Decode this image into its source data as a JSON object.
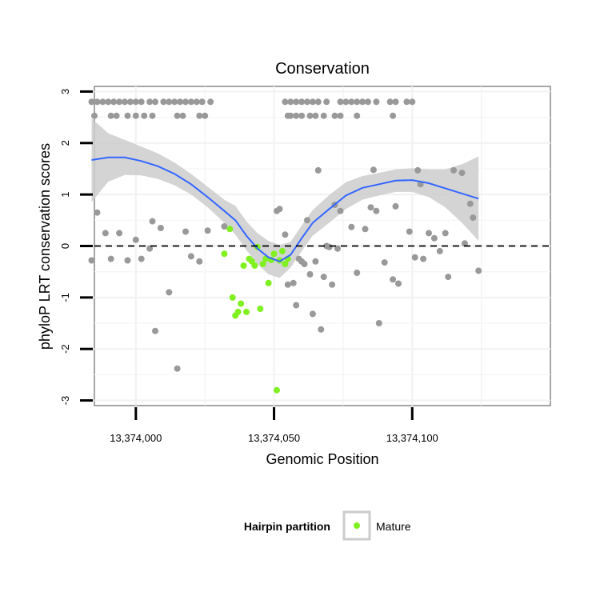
{
  "chart_data": {
    "type": "scatter",
    "title": "Conservation",
    "xlabel": "Genomic Position",
    "ylabel": "phyloP LRT conservation scores",
    "xlim": [
      13373985,
      13374150
    ],
    "ylim": [
      -3.1,
      3.1
    ],
    "x_ticks": [
      13374000,
      13374050,
      13374100
    ],
    "x_tick_labels": [
      "13,374,000",
      "13,374,050",
      "13,374,100"
    ],
    "y_ticks": [
      -3,
      -2,
      -1,
      0,
      1,
      2,
      3
    ],
    "y_tick_labels": [
      "-3",
      "-2",
      "-1",
      "0",
      "1",
      "2",
      "3"
    ],
    "grid": true,
    "reference_line": {
      "y": 0,
      "style": "dashed"
    },
    "colors": {
      "other": "#999999",
      "mature": "#80f020",
      "smooth": "#3366ff",
      "band": "#cccccc"
    },
    "legend": {
      "title": "Hairpin partition",
      "position": "bottom",
      "entries": [
        "Mature"
      ]
    },
    "series": [
      {
        "group": "other",
        "points": [
          [
            13373984,
            2.8
          ],
          [
            13373986,
            2.8
          ],
          [
            13373988,
            2.8
          ],
          [
            13373990,
            2.8
          ],
          [
            13373992,
            2.8
          ],
          [
            13373994,
            2.8
          ],
          [
            13373996,
            2.8
          ],
          [
            13373998,
            2.8
          ],
          [
            13374000,
            2.8
          ],
          [
            13374002,
            2.8
          ],
          [
            13374005,
            2.8
          ],
          [
            13374007,
            2.8
          ],
          [
            13374010,
            2.8
          ],
          [
            13374012,
            2.8
          ],
          [
            13374014,
            2.8
          ],
          [
            13374016,
            2.8
          ],
          [
            13374018,
            2.8
          ],
          [
            13374020,
            2.8
          ],
          [
            13374022,
            2.8
          ],
          [
            13374024,
            2.8
          ],
          [
            13374027,
            2.8
          ],
          [
            13373985,
            2.53
          ],
          [
            13373991,
            2.53
          ],
          [
            13373993,
            2.53
          ],
          [
            13373997,
            2.53
          ],
          [
            13374000,
            2.53
          ],
          [
            13374003,
            2.53
          ],
          [
            13374006,
            2.53
          ],
          [
            13374015,
            2.53
          ],
          [
            13374017,
            2.53
          ],
          [
            13374023,
            2.53
          ],
          [
            13374025,
            2.53
          ],
          [
            13374054,
            2.8
          ],
          [
            13374056,
            2.8
          ],
          [
            13374058,
            2.8
          ],
          [
            13374060,
            2.8
          ],
          [
            13374062,
            2.8
          ],
          [
            13374064,
            2.8
          ],
          [
            13374066,
            2.8
          ],
          [
            13374069,
            2.8
          ],
          [
            13374074,
            2.8
          ],
          [
            13374076,
            2.8
          ],
          [
            13374078,
            2.8
          ],
          [
            13374080,
            2.8
          ],
          [
            13374082,
            2.8
          ],
          [
            13374084,
            2.8
          ],
          [
            13374087,
            2.8
          ],
          [
            13374092,
            2.8
          ],
          [
            13374094,
            2.8
          ],
          [
            13374098,
            2.8
          ],
          [
            13374100,
            2.8
          ],
          [
            13374055,
            2.53
          ],
          [
            13374056,
            2.53
          ],
          [
            13374058,
            2.53
          ],
          [
            13374060,
            2.53
          ],
          [
            13374063,
            2.53
          ],
          [
            13374065,
            2.53
          ],
          [
            13374068,
            2.53
          ],
          [
            13374072,
            2.53
          ],
          [
            13374074,
            2.53
          ],
          [
            13374080,
            2.53
          ],
          [
            13374093,
            2.53
          ],
          [
            13373984,
            -0.28
          ],
          [
            13373986,
            0.65
          ],
          [
            13373989,
            0.25
          ],
          [
            13373991,
            -0.25
          ],
          [
            13373994,
            0.25
          ],
          [
            13373997,
            -0.28
          ],
          [
            13374000,
            0.12
          ],
          [
            13374002,
            -0.25
          ],
          [
            13374005,
            -0.05
          ],
          [
            13374006,
            0.48
          ],
          [
            13374007,
            -1.65
          ],
          [
            13374009,
            0.35
          ],
          [
            13374012,
            -0.9
          ],
          [
            13374015,
            -2.38
          ],
          [
            13374018,
            0.28
          ],
          [
            13374020,
            -0.2
          ],
          [
            13374023,
            -0.3
          ],
          [
            13374026,
            0.3
          ],
          [
            13374032,
            0.38
          ],
          [
            13374051,
            0.68
          ],
          [
            13374052,
            0.72
          ],
          [
            13374054,
            0.22
          ],
          [
            13374055,
            -0.75
          ],
          [
            13374057,
            -0.72
          ],
          [
            13374058,
            -1.15
          ],
          [
            13374059,
            -0.25
          ],
          [
            13374060,
            -0.3
          ],
          [
            13374061,
            -0.35
          ],
          [
            13374062,
            0.5
          ],
          [
            13374063,
            -0.55
          ],
          [
            13374064,
            -1.32
          ],
          [
            13374065,
            -0.3
          ],
          [
            13374066,
            1.47
          ],
          [
            13374067,
            -1.62
          ],
          [
            13374068,
            -0.6
          ],
          [
            13374069,
            0.0
          ],
          [
            13374070,
            -0.02
          ],
          [
            13374071,
            -0.75
          ],
          [
            13374072,
            0.8
          ],
          [
            13374073,
            -0.05
          ],
          [
            13374074,
            0.68
          ],
          [
            13374078,
            0.37
          ],
          [
            13374080,
            -0.52
          ],
          [
            13374083,
            0.33
          ],
          [
            13374085,
            0.75
          ],
          [
            13374086,
            1.48
          ],
          [
            13374087,
            0.68
          ],
          [
            13374088,
            -1.5
          ],
          [
            13374090,
            -0.32
          ],
          [
            13374093,
            -0.65
          ],
          [
            13374094,
            0.77
          ],
          [
            13374095,
            -0.73
          ],
          [
            13374099,
            0.28
          ],
          [
            13374101,
            -0.22
          ],
          [
            13374102,
            1.47
          ],
          [
            13374103,
            1.2
          ],
          [
            13374104,
            -0.25
          ],
          [
            13374106,
            0.25
          ],
          [
            13374108,
            0.15
          ],
          [
            13374110,
            -0.1
          ],
          [
            13374112,
            0.25
          ],
          [
            13374113,
            -0.6
          ],
          [
            13374115,
            1.47
          ],
          [
            13374118,
            1.42
          ],
          [
            13374119,
            0.05
          ],
          [
            13374121,
            0.82
          ],
          [
            13374122,
            0.55
          ],
          [
            13374124,
            -0.48
          ]
        ]
      },
      {
        "name": "Mature",
        "group": "mature",
        "points": [
          [
            13374032,
            -0.15
          ],
          [
            13374034,
            0.33
          ],
          [
            13374035,
            -1.0
          ],
          [
            13374036,
            -1.35
          ],
          [
            13374037,
            -1.28
          ],
          [
            13374038,
            -1.12
          ],
          [
            13374039,
            -0.38
          ],
          [
            13374040,
            -1.28
          ],
          [
            13374041,
            -0.25
          ],
          [
            13374042,
            -0.3
          ],
          [
            13374043,
            -0.38
          ],
          [
            13374044,
            -0.02
          ],
          [
            13374045,
            -1.22
          ],
          [
            13374046,
            -0.35
          ],
          [
            13374047,
            -0.25
          ],
          [
            13374048,
            -0.72
          ],
          [
            13374049,
            -0.27
          ],
          [
            13374050,
            -0.15
          ],
          [
            13374051,
            -2.8
          ],
          [
            13374052,
            -0.28
          ],
          [
            13374053,
            -0.1
          ],
          [
            13374054,
            -0.35
          ],
          [
            13374055,
            -0.25
          ]
        ]
      }
    ],
    "smooth": {
      "x": [
        13373984,
        13373990,
        13373996,
        13374002,
        13374008,
        13374014,
        13374020,
        13374026,
        13374032,
        13374036,
        13374040,
        13374044,
        13374048,
        13374052,
        13374056,
        13374060,
        13374064,
        13374070,
        13374076,
        13374082,
        13374088,
        13374094,
        13374100,
        13374106,
        13374112,
        13374118,
        13374124
      ],
      "y": [
        1.67,
        1.72,
        1.72,
        1.65,
        1.55,
        1.4,
        1.2,
        0.95,
        0.68,
        0.5,
        0.2,
        -0.05,
        -0.22,
        -0.3,
        -0.17,
        0.15,
        0.45,
        0.72,
        0.98,
        1.13,
        1.2,
        1.27,
        1.28,
        1.22,
        1.12,
        1.02,
        0.92
      ],
      "lower": [
        0.85,
        1.25,
        1.38,
        1.37,
        1.3,
        1.18,
        1.0,
        0.75,
        0.45,
        0.22,
        -0.08,
        -0.35,
        -0.55,
        -0.62,
        -0.42,
        -0.1,
        0.2,
        0.45,
        0.72,
        0.9,
        0.98,
        1.05,
        1.05,
        0.95,
        0.75,
        0.45,
        0.1
      ],
      "upper": [
        2.48,
        2.19,
        2.06,
        1.93,
        1.8,
        1.62,
        1.4,
        1.15,
        0.9,
        0.78,
        0.48,
        0.25,
        0.1,
        0.02,
        0.08,
        0.4,
        0.7,
        0.99,
        1.24,
        1.36,
        1.42,
        1.49,
        1.51,
        1.49,
        1.49,
        1.59,
        1.74
      ]
    }
  }
}
